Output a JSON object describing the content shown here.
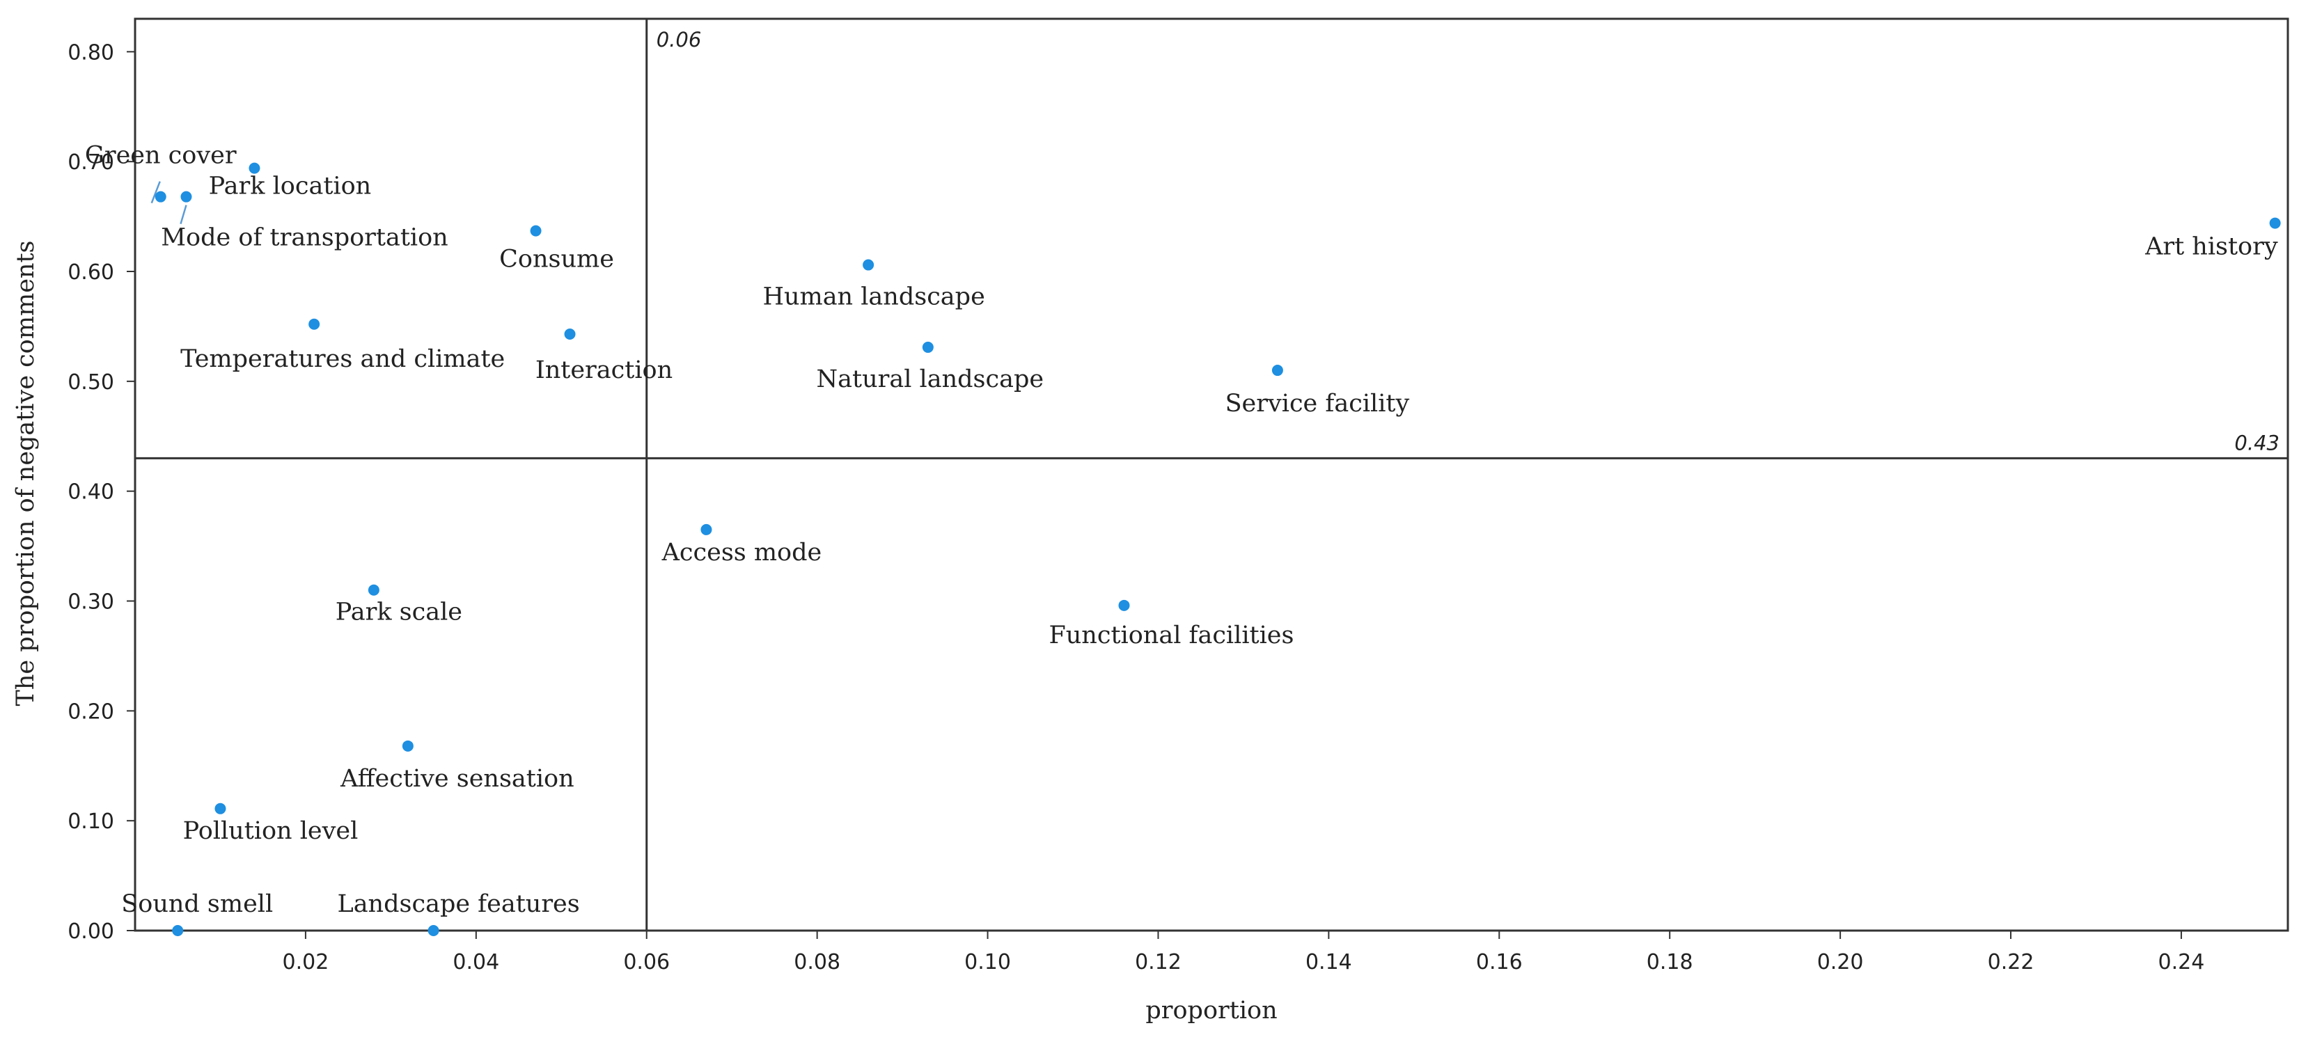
{
  "chart_data": {
    "type": "scatter",
    "title": "",
    "xlabel": "proportion",
    "ylabel": "The proportion of negative comments",
    "xlim": [
      0.0,
      0.2525
    ],
    "ylim": [
      0.0,
      0.83
    ],
    "x_ticks": [
      0.02,
      0.04,
      0.06,
      0.08,
      0.1,
      0.12,
      0.14,
      0.16,
      0.18,
      0.2,
      0.22,
      0.24
    ],
    "x_tick_labels": [
      "0.02",
      "0.04",
      "0.06",
      "0.08",
      "0.10",
      "0.12",
      "0.14",
      "0.16",
      "0.18",
      "0.20",
      "0.22",
      "0.24"
    ],
    "y_ticks": [
      0.0,
      0.1,
      0.2,
      0.3,
      0.4,
      0.5,
      0.6,
      0.7,
      0.8
    ],
    "y_tick_labels": [
      "0.00",
      "0.10",
      "0.20",
      "0.30",
      "0.40",
      "0.50",
      "0.60",
      "0.70",
      "0.80"
    ],
    "grid": false,
    "legend": "none",
    "reference_lines": {
      "vertical": {
        "value": 0.06,
        "label": "0.06"
      },
      "horizontal": {
        "value": 0.43,
        "label": "0.43"
      }
    },
    "point_color": "#1E8FE1",
    "line_color": "#333333",
    "leader_color": "#5B9BD5",
    "points": [
      {
        "label": "Green cover",
        "x": 0.003,
        "y": 0.668
      },
      {
        "label": "Mode of transportation",
        "x": 0.006,
        "y": 0.668
      },
      {
        "label": "Park location",
        "x": 0.014,
        "y": 0.694
      },
      {
        "label": "Consume",
        "x": 0.047,
        "y": 0.637
      },
      {
        "label": "Temperatures and climate",
        "x": 0.021,
        "y": 0.552
      },
      {
        "label": "Interaction",
        "x": 0.051,
        "y": 0.543
      },
      {
        "label": "Human landscape",
        "x": 0.086,
        "y": 0.606
      },
      {
        "label": "Natural landscape",
        "x": 0.093,
        "y": 0.531
      },
      {
        "label": "Service facility",
        "x": 0.134,
        "y": 0.51
      },
      {
        "label": "Art history",
        "x": 0.251,
        "y": 0.644
      },
      {
        "label": "Access mode",
        "x": 0.067,
        "y": 0.365
      },
      {
        "label": "Park scale",
        "x": 0.028,
        "y": 0.31
      },
      {
        "label": "Functional facilities",
        "x": 0.116,
        "y": 0.296
      },
      {
        "label": "Affective sensation",
        "x": 0.032,
        "y": 0.168
      },
      {
        "label": "Pollution level",
        "x": 0.01,
        "y": 0.111
      },
      {
        "label": "Sound smell",
        "x": 0.005,
        "y": 0.0
      },
      {
        "label": "Landscape features",
        "x": 0.035,
        "y": 0.0
      }
    ]
  }
}
